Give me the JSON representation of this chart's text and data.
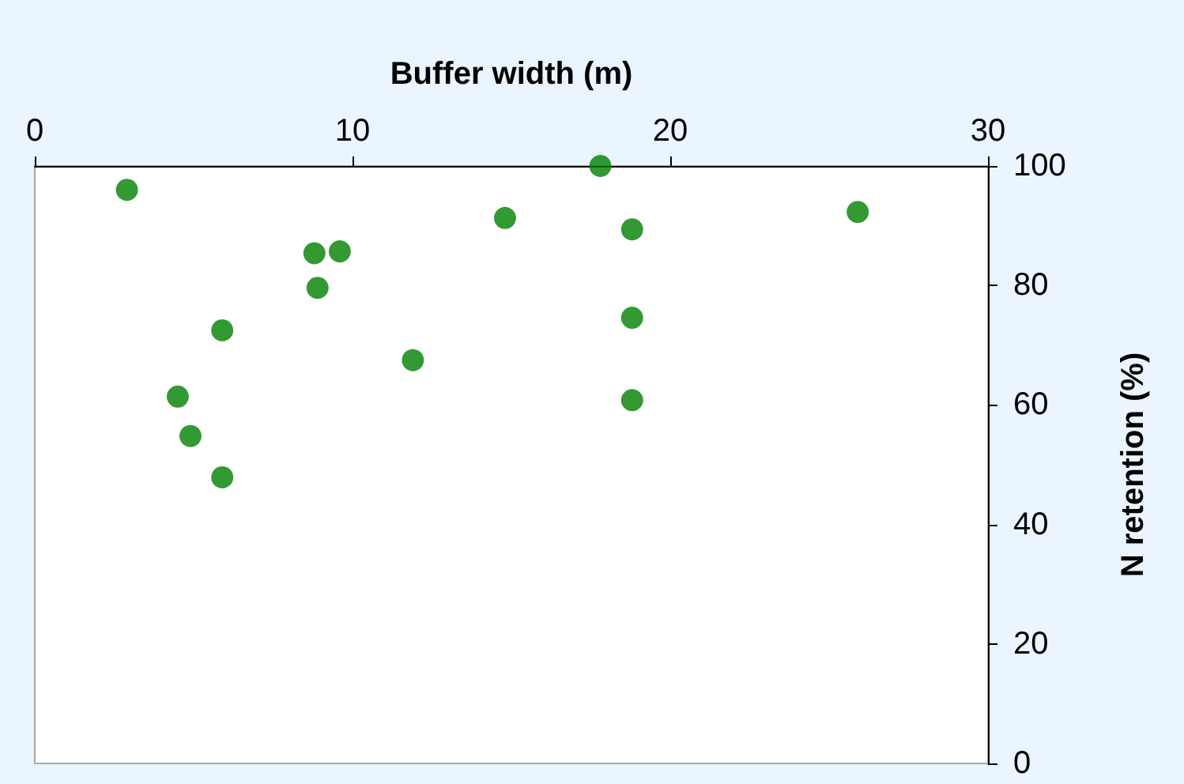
{
  "chart_data": {
    "type": "scatter",
    "xlabel": "Buffer width (m)",
    "ylabel": "N retention (%)",
    "x": [
      2.9,
      4.5,
      4.9,
      5.9,
      5.9,
      8.8,
      9.6,
      8.9,
      11.9,
      14.8,
      17.8,
      18.8,
      18.8,
      18.8,
      25.9
    ],
    "values": [
      96,
      61.4,
      54.8,
      72.5,
      47.9,
      85.4,
      85.7,
      79.6,
      67.5,
      91.3,
      100,
      89.4,
      74.6,
      60.8,
      92.3
    ],
    "color": "#008000",
    "marker": "circle",
    "xlim": [
      0,
      30
    ],
    "xticks": [
      0,
      10,
      20,
      30
    ],
    "ylim": [
      0,
      100
    ],
    "yticks": [
      0,
      20,
      40,
      60,
      80,
      100
    ],
    "grid": false
  }
}
